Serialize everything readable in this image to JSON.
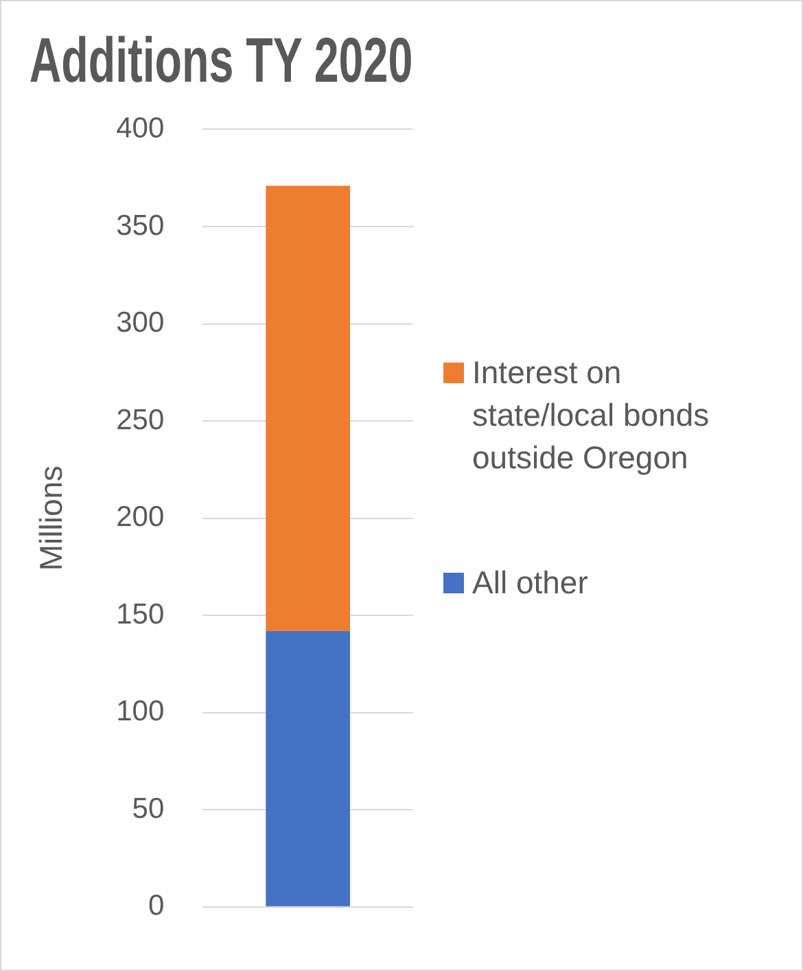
{
  "chart_data": {
    "type": "bar",
    "title": "Additions TY 2020",
    "ylabel": "Millions",
    "categories": [
      null
    ],
    "stacked": true,
    "series": [
      {
        "name": "All other",
        "color": "#4472c4",
        "values": [
          142
        ]
      },
      {
        "name": "Interest on state/local bonds outside Oregon",
        "color": "#ed7d31",
        "values": [
          229
        ]
      }
    ],
    "ylim": [
      0,
      400
    ],
    "yticks": [
      0,
      50,
      100,
      150,
      200,
      250,
      300,
      350,
      400
    ],
    "grid": "y",
    "legend": "right",
    "tick_labels": "y"
  }
}
